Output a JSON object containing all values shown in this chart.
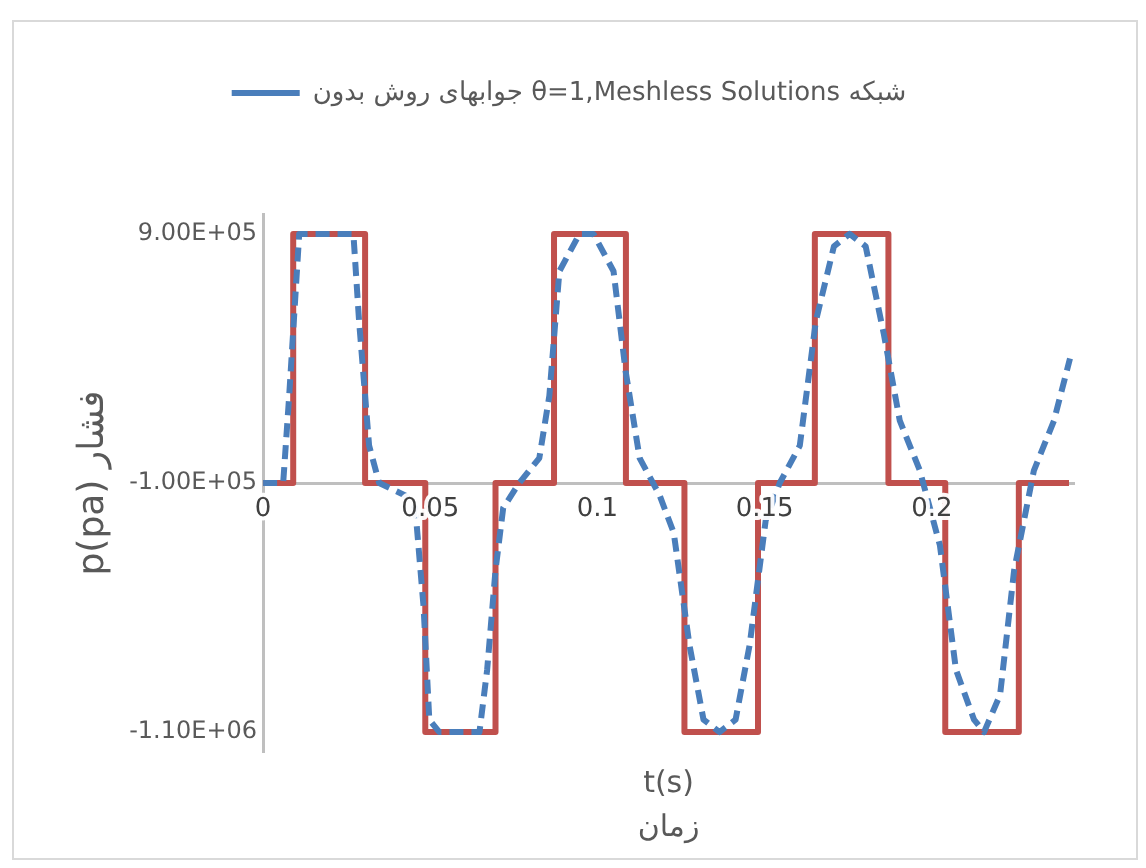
{
  "chart_data": {
    "type": "line",
    "xlabel": "t(s)\nزمان",
    "ylabel": "p(pa) فشار",
    "xlim": [
      0,
      0.2425
    ],
    "xticks": [
      0,
      0.05,
      0.1,
      0.15,
      0.2
    ],
    "ylim": [
      -1180000,
      980000
    ],
    "yticks": [
      {
        "value": 900000,
        "label": "9.00E+05"
      },
      {
        "value": -100000,
        "label": "-1.00E+05"
      },
      {
        "value": -1100000,
        "label": "-1.10E+06"
      }
    ],
    "grid": false,
    "legend": "top",
    "marker": "none",
    "series": [
      {
        "name": "جوابهای روش بدون θ=1,Meshless Solutions شبکه",
        "color": "#4a7ebb",
        "line_style": "dashed",
        "x": [
          0,
          0.006,
          0.0078,
          0.0108,
          0.015,
          0.027,
          0.0287,
          0.0317,
          0.0347,
          0.0425,
          0.0455,
          0.048,
          0.0497,
          0.0527,
          0.0647,
          0.067,
          0.0695,
          0.0718,
          0.0766,
          0.0826,
          0.0856,
          0.0886,
          0.0946,
          0.0988,
          0.1048,
          0.1084,
          0.1126,
          0.1186,
          0.1228,
          0.1275,
          0.1317,
          0.1365,
          0.1413,
          0.1455,
          0.1503,
          0.1545,
          0.1605,
          0.1653,
          0.1707,
          0.1754,
          0.1802,
          0.1856,
          0.1904,
          0.1964,
          0.2024,
          0.2072,
          0.2126,
          0.2156,
          0.2204,
          0.2246,
          0.2305,
          0.2365,
          0.2413
        ],
        "values": [
          -100000,
          -100000,
          250000,
          900000,
          900000,
          900000,
          550000,
          50000,
          -100000,
          -150000,
          -200000,
          -600000,
          -1050000,
          -1100000,
          -1100000,
          -850000,
          -450000,
          -200000,
          -100000,
          0,
          250000,
          750000,
          900000,
          900000,
          750000,
          350000,
          0,
          -150000,
          -300000,
          -750000,
          -1050000,
          -1100000,
          -1050000,
          -750000,
          -250000,
          -100000,
          50000,
          550000,
          850000,
          900000,
          850000,
          500000,
          150000,
          -50000,
          -350000,
          -850000,
          -1050000,
          -1100000,
          -950000,
          -450000,
          -50000,
          150000,
          400000
        ]
      },
      {
        "color": "#c0504d",
        "line_style": "solid",
        "x": [
          0,
          0.009,
          0.009,
          0.0305,
          0.0305,
          0.0485,
          0.0485,
          0.0695,
          0.0695,
          0.087,
          0.087,
          0.1085,
          0.1085,
          0.126,
          0.126,
          0.148,
          0.148,
          0.165,
          0.165,
          0.187,
          0.187,
          0.204,
          0.204,
          0.226,
          0.226,
          0.241
        ],
        "values": [
          -100000,
          -100000,
          900000,
          900000,
          -100000,
          -100000,
          -1100000,
          -1100000,
          -100000,
          -100000,
          900000,
          900000,
          -100000,
          -100000,
          -1100000,
          -1100000,
          -100000,
          -100000,
          900000,
          900000,
          -100000,
          -100000,
          -1100000,
          -1100000,
          -100000,
          -100000
        ]
      }
    ]
  }
}
